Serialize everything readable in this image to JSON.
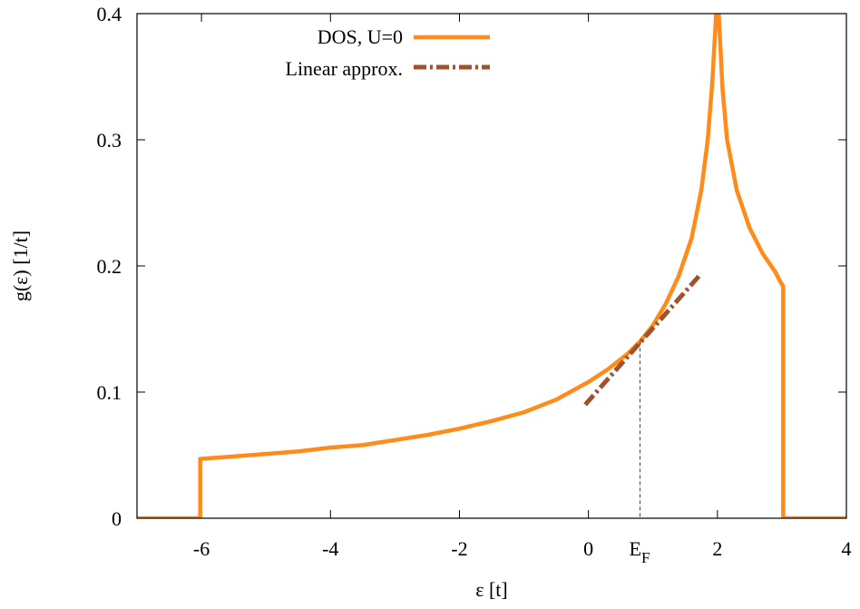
{
  "chart_data": {
    "type": "line",
    "title": "",
    "xlabel": "ε [t]",
    "ylabel": "g(ε) [1/t]",
    "xlim": [
      -7,
      4
    ],
    "ylim": [
      0,
      0.4
    ],
    "xticks": [
      -6,
      -4,
      -2,
      0,
      2,
      4
    ],
    "yticks": [
      0,
      0.1,
      0.2,
      0.3,
      0.4
    ],
    "xtick_labels": [
      "-6",
      "-4",
      "-2",
      "0",
      "2",
      "4"
    ],
    "ytick_labels": [
      "0",
      "0.1",
      "0.2",
      "0.3",
      "0.4"
    ],
    "grid": false,
    "legend_position": "top-center",
    "series": [
      {
        "name": "DOS, U=0",
        "style": "solid",
        "color": "#ff8c1a",
        "x": [
          -7,
          -6.02,
          -6.02,
          -5.5,
          -5,
          -4.5,
          -4,
          -3.5,
          -3,
          -2.5,
          -2,
          -1.5,
          -1,
          -0.5,
          0,
          0.3,
          0.6,
          0.8,
          1.0,
          1.2,
          1.4,
          1.6,
          1.75,
          1.85,
          1.92,
          1.97,
          2.0,
          2.03,
          2.08,
          2.15,
          2.3,
          2.5,
          2.7,
          2.9,
          2.98,
          3.02,
          3.02,
          4
        ],
        "y": [
          0,
          0,
          0.047,
          0.049,
          0.051,
          0.053,
          0.056,
          0.058,
          0.062,
          0.066,
          0.071,
          0.077,
          0.084,
          0.094,
          0.108,
          0.118,
          0.13,
          0.14,
          0.153,
          0.17,
          0.192,
          0.222,
          0.26,
          0.3,
          0.345,
          0.39,
          0.42,
          0.39,
          0.34,
          0.3,
          0.26,
          0.23,
          0.21,
          0.195,
          0.187,
          0.184,
          0,
          0
        ]
      },
      {
        "name": "Linear approx.",
        "style": "dash-dot",
        "color": "#a0522d",
        "x": [
          -0.05,
          1.75
        ],
        "y": [
          0.09,
          0.194
        ]
      }
    ],
    "annotations": [
      {
        "label": "E",
        "subscript": "F",
        "x": 0.8,
        "y_top": 0.14
      }
    ]
  }
}
